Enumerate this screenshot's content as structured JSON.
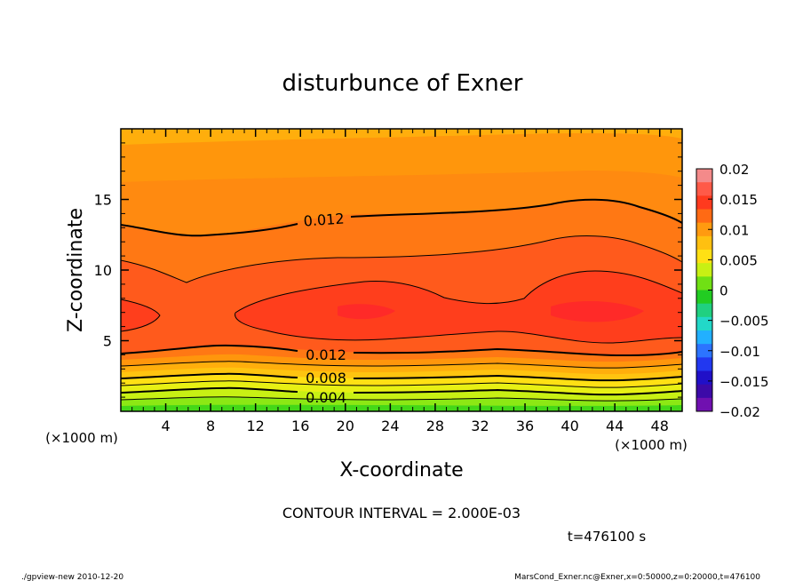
{
  "chart_data": {
    "type": "contour",
    "title": "disturbunce of Exner",
    "xlabel": "X-coordinate",
    "ylabel": "Z-coordinate",
    "x_unit": "(×1000 m)",
    "xlim": [
      0,
      50
    ],
    "ylim": [
      0,
      20
    ],
    "x_ticks": [
      4,
      8,
      12,
      16,
      20,
      24,
      28,
      32,
      36,
      40,
      44,
      48
    ],
    "y_ticks": [
      5,
      10,
      15
    ],
    "contour_interval": "CONTOUR INTERVAL = 2.000E-03",
    "time_label": "t=476100 s",
    "contour_labels": [
      {
        "text": "0.012",
        "x": 17.5,
        "z": 13.7
      },
      {
        "text": "0.012",
        "x": 18.0,
        "z": 3.9
      },
      {
        "text": "0.008",
        "x": 18.0,
        "z": 2.2
      },
      {
        "text": "0.004",
        "x": 18.0,
        "z": 0.9
      }
    ],
    "colorbar": {
      "ticks": [
        "0.02",
        "0.015",
        "0.01",
        "0.005",
        "0",
        "−0.005",
        "−0.01",
        "−0.015",
        "−0.02"
      ],
      "levels": [
        0.02,
        0.015,
        0.01,
        0.005,
        0,
        -0.005,
        -0.01,
        -0.015,
        -0.02
      ],
      "colors": [
        "#f48a8a",
        "#ff5a48",
        "#ff3a1e",
        "#ff6a14",
        "#ff9a10",
        "#ffc010",
        "#ffe014",
        "#c8f014",
        "#70e014",
        "#22cc22",
        "#20d080",
        "#22d8c8",
        "#22b0ff",
        "#2c74ff",
        "#2238f0",
        "#2010c8",
        "#3c0aa8",
        "#7010b0"
      ]
    },
    "bands_top_to_bottom": [
      {
        "level": 0.0085,
        "color": "#ffae0c"
      },
      {
        "level": 0.01,
        "color": "#ff960c"
      },
      {
        "level": 0.012,
        "color": "#ff7812"
      },
      {
        "level": 0.014,
        "color": "#ff5a1a"
      },
      {
        "level": 0.016,
        "color": "#ff3e1c"
      },
      {
        "level": 0.0165,
        "color": "#ff2a24"
      }
    ]
  },
  "footer": {
    "left": "./gpview-new   2010-12-20",
    "right": "MarsCond_Exner.nc@Exner,x=0:50000,z=0:20000,t=476100"
  }
}
